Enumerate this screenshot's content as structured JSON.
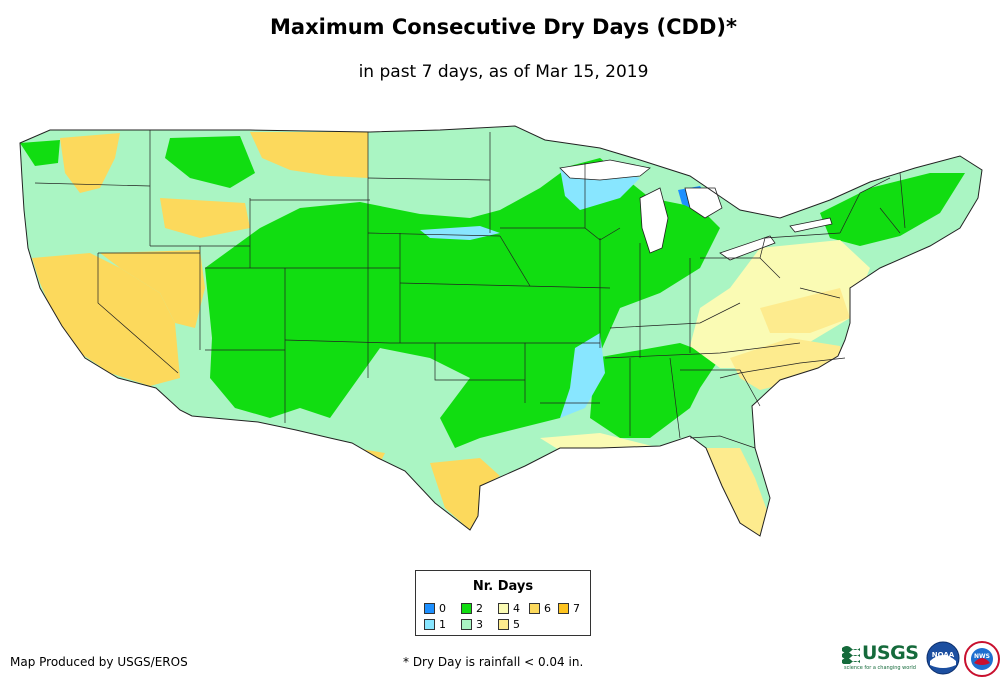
{
  "title": "Maximum Consecutive Dry Days (CDD)*",
  "subtitle": "in past 7 days, as of Mar 15, 2019",
  "legend": {
    "title": "Nr. Days",
    "items": [
      {
        "label": "0",
        "color": "#1e90ff"
      },
      {
        "label": "1",
        "color": "#88e6ff"
      },
      {
        "label": "2",
        "color": "#11dd11"
      },
      {
        "label": "3",
        "color": "#aaf5c3"
      },
      {
        "label": "4",
        "color": "#fafbb4"
      },
      {
        "label": "5",
        "color": "#fdeb8e"
      },
      {
        "label": "6",
        "color": "#fcd95c"
      },
      {
        "label": "7",
        "color": "#fdc31f"
      }
    ]
  },
  "footer": {
    "credit": "Map Produced by USGS/EROS",
    "note": "* Dry Day is rainfall < 0.04 in."
  },
  "logos": {
    "usgs": "USGS",
    "usgs_tagline": "science for a changing world",
    "noaa": "NOAA",
    "nws": "NWS"
  }
}
